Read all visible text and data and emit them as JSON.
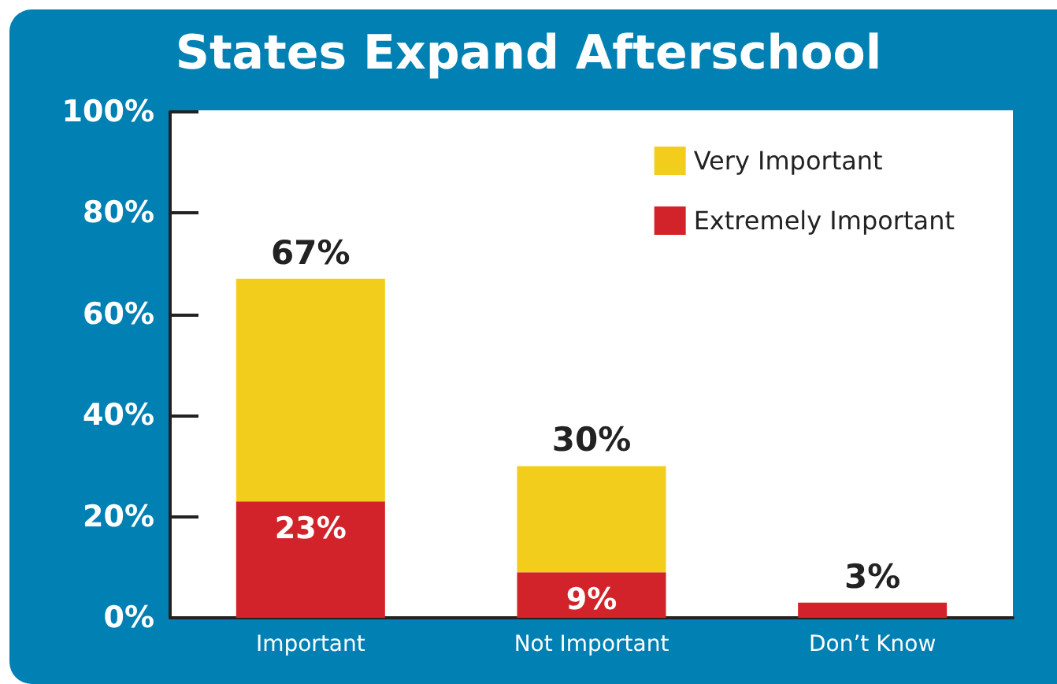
{
  "chart_data": {
    "type": "bar",
    "title": "States Expand Afterschool",
    "categories": [
      "Important",
      "Not Important",
      "Don’t Know"
    ],
    "stacked": true,
    "series": [
      {
        "name": "Extremely Important",
        "color": "#d2232a",
        "values": [
          23,
          9,
          3
        ],
        "value_labels": [
          "23%",
          "9%",
          null
        ]
      },
      {
        "name": "Very Important",
        "color": "#f2cd1c",
        "values": [
          44,
          21,
          null
        ]
      }
    ],
    "totals": [
      "67%",
      "30%",
      "3%"
    ],
    "ylim": [
      0,
      100
    ],
    "yticks": [
      {
        "value": 0,
        "label": "0%"
      },
      {
        "value": 20,
        "label": "20%"
      },
      {
        "value": 40,
        "label": "40%"
      },
      {
        "value": 60,
        "label": "60%"
      },
      {
        "value": 80,
        "label": "80%"
      },
      {
        "value": 100,
        "label": "100%"
      }
    ],
    "grid": false,
    "legend": "top right"
  }
}
